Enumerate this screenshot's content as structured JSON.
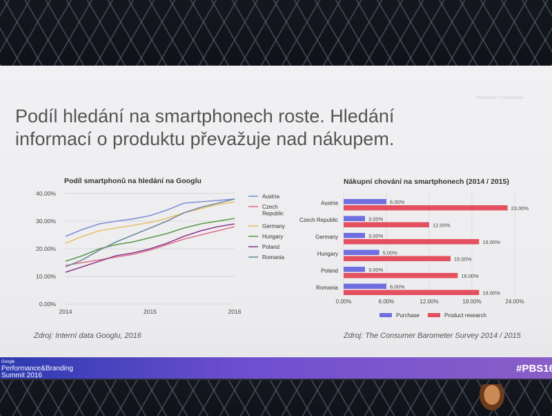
{
  "slide": {
    "title_line1": "Podíl hledání na smartphonech roste. Hledání",
    "title_line2": "informací o produktu převažuje nad nákupem.",
    "watermark": "Proprietary + Confidential"
  },
  "footer": {
    "brand_line1": "Google",
    "brand_line2": "Performance&Branding",
    "brand_line3": "Summit 2016",
    "hashtag": "#PBS16",
    "gradient_start": "#2c3ab0",
    "gradient_end": "#8a5ec8"
  },
  "chart_data": [
    {
      "type": "line",
      "title": "Podíl smartphonů na hledání na Googlu",
      "source": "Zdroj: Interní data Googlu, 2016",
      "x": [
        2014,
        2014.2,
        2014.4,
        2014.6,
        2014.8,
        2015,
        2015.2,
        2015.4,
        2015.6,
        2015.8,
        2016
      ],
      "x_ticks": [
        "2014",
        "2015",
        "2016"
      ],
      "y_ticks": [
        "0.00%",
        "10.00%",
        "20.00%",
        "30.00%",
        "40.00%"
      ],
      "ylim": [
        0,
        40
      ],
      "legend_position": "right",
      "series": [
        {
          "name": "Austria",
          "color": "#7b8fd6",
          "values": [
            24.5,
            27,
            29,
            30,
            30.8,
            32,
            34,
            36.5,
            37,
            37.5,
            38
          ]
        },
        {
          "name": "Czech Republic",
          "color": "#e0708a",
          "values": [
            14,
            15,
            16,
            17,
            18,
            19.5,
            21.5,
            23.5,
            25,
            26.5,
            28
          ]
        },
        {
          "name": "Germany",
          "color": "#e8c06a",
          "values": [
            22,
            24.5,
            26.5,
            27.5,
            28.5,
            29.5,
            31,
            33,
            34.5,
            36,
            37
          ]
        },
        {
          "name": "Hungary",
          "color": "#5a9a48",
          "values": [
            15.5,
            17.5,
            20,
            21.5,
            22.5,
            24,
            25.5,
            27.5,
            29,
            30,
            31
          ]
        },
        {
          "name": "Poland",
          "color": "#8a3a8a",
          "values": [
            11.5,
            13.5,
            15.5,
            17.5,
            18.5,
            20,
            22,
            24.5,
            26.5,
            28,
            29
          ]
        },
        {
          "name": "Romania",
          "color": "#6f8a9e",
          "values": [
            13.5,
            16,
            19.5,
            22.5,
            25,
            27.5,
            30,
            33,
            35,
            36.5,
            38
          ]
        }
      ]
    },
    {
      "type": "bar",
      "orientation": "horizontal",
      "title": "Nákupní chování na smartphonech (2014 / 2015)",
      "source": "Zdroj: The Consumer Barometer Survey 2014 / 2015",
      "categories": [
        "Austria",
        "Czech Republic",
        "Germany",
        "Hungary",
        "Poland",
        "Romania"
      ],
      "x_ticks": [
        "0.00%",
        "6.00%",
        "12.00%",
        "18.00%",
        "24.00%"
      ],
      "xlim": [
        0,
        24
      ],
      "legend_position": "bottom",
      "series": [
        {
          "name": "Purchase",
          "color": "#6f6fe0",
          "values": [
            6,
            3,
            3,
            5,
            3,
            6
          ],
          "labels": [
            "6.00%",
            "3.00%",
            "3.00%",
            "5.00%",
            "3.00%",
            "6.00%"
          ]
        },
        {
          "name": "Product research",
          "color": "#e4505f",
          "values": [
            23,
            12,
            19,
            15,
            16,
            19
          ],
          "labels": [
            "23.00%",
            "12.00%",
            "19.00%",
            "15.00%",
            "16.00%",
            "19.00%"
          ]
        }
      ]
    }
  ]
}
